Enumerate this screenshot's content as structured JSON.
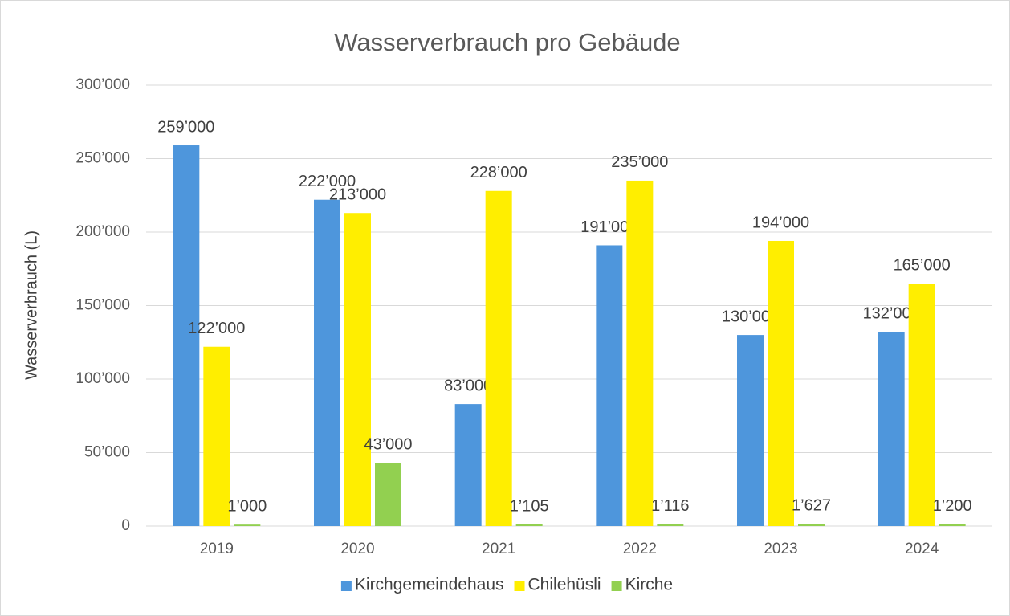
{
  "chart_data": {
    "type": "bar",
    "title": "Wasserverbrauch pro Gebäude",
    "y_label": "Wasserverbrauch (L)",
    "categories": [
      "2019",
      "2020",
      "2021",
      "2022",
      "2023",
      "2024"
    ],
    "series": [
      {
        "name": "Kirchgemeindehaus",
        "color": "#4e96dc",
        "values": [
          259000,
          222000,
          83000,
          191000,
          130000,
          132000
        ],
        "value_labels": [
          "259’000",
          "222’000",
          "83’000",
          "191’000",
          "130’000",
          "132’000"
        ]
      },
      {
        "name": "Chilehüsli",
        "color": "#ffee00",
        "values": [
          122000,
          213000,
          228000,
          235000,
          194000,
          165000
        ],
        "value_labels": [
          "122’000",
          "213’000",
          "228’000",
          "235’000",
          "194’000",
          "165’000"
        ]
      },
      {
        "name": "Kirche",
        "color": "#92d050",
        "values": [
          1000,
          43000,
          1105,
          1116,
          1627,
          1200
        ],
        "value_labels": [
          "1’000",
          "43’000",
          "1’105",
          "1’116",
          "1’627",
          "1’200"
        ]
      }
    ],
    "ylim": [
      0,
      300000
    ],
    "yticks": [
      0,
      {
        "value": 50000,
        "label": "50’000"
      },
      {
        "value": 100000,
        "label": "100’000"
      },
      {
        "value": 150000,
        "label": "150’000"
      },
      {
        "value": 200000,
        "label": "200’000"
      },
      {
        "value": 250000,
        "label": "250’000"
      },
      {
        "value": 300000,
        "label": "300’000"
      }
    ],
    "grid": true,
    "legend": "bottom"
  }
}
